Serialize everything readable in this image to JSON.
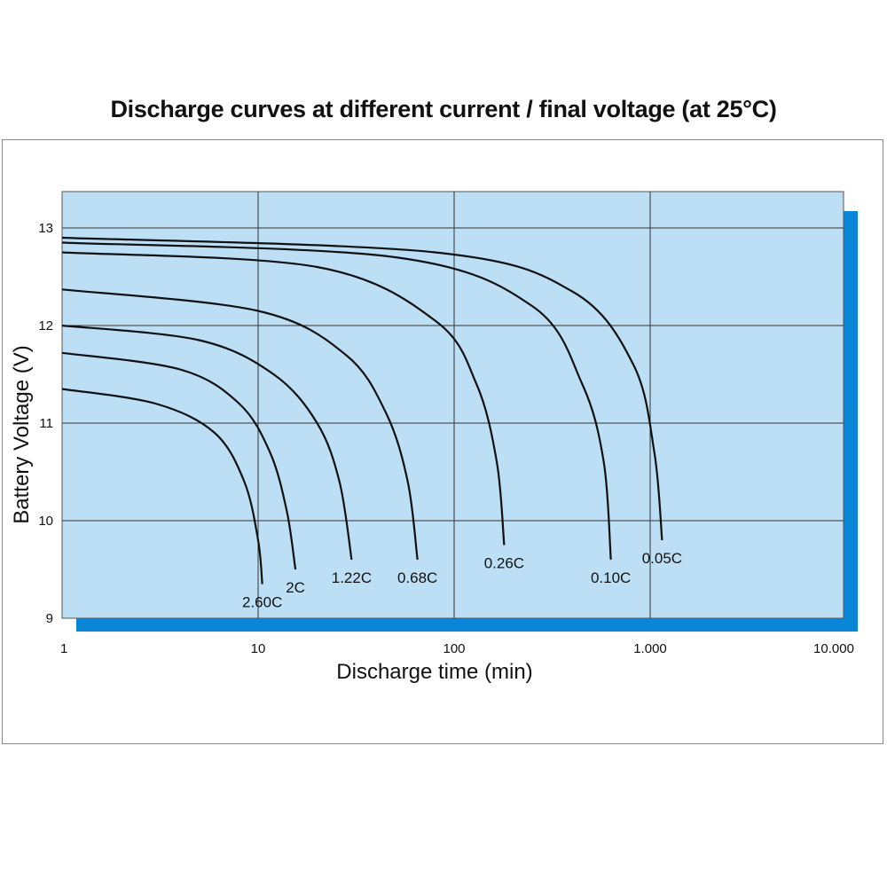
{
  "chart_data": {
    "type": "line",
    "title": "Discharge curves at different current / final voltage (at 25°C)",
    "xlabel": "Discharge time (min)",
    "ylabel": "Battery Voltage (V)",
    "x_scale": "log",
    "xlim": [
      1,
      10000
    ],
    "ylim": [
      9,
      13.2
    ],
    "x_ticks": [
      {
        "value": 1,
        "label": "1"
      },
      {
        "value": 10,
        "label": "10"
      },
      {
        "value": 100,
        "label": "100"
      },
      {
        "value": 1000,
        "label": "1.000"
      },
      {
        "value": 10000,
        "label": "10.000"
      }
    ],
    "y_ticks": [
      {
        "value": 9,
        "label": "9"
      },
      {
        "value": 10,
        "label": "10"
      },
      {
        "value": 11,
        "label": "11"
      },
      {
        "value": 12,
        "label": "12"
      },
      {
        "value": 13,
        "label": "13"
      }
    ],
    "grid": true,
    "colors": {
      "plot_background": "#bddff5",
      "shadow": "#0a86d8",
      "line": "#111111",
      "grid": "#333333"
    },
    "series": [
      {
        "name": "2.60C",
        "points": [
          [
            1,
            11.35
          ],
          [
            3,
            11.2
          ],
          [
            6,
            10.9
          ],
          [
            8.5,
            10.4
          ],
          [
            10,
            9.8
          ],
          [
            10.5,
            9.35
          ]
        ]
      },
      {
        "name": "2C",
        "points": [
          [
            1,
            11.72
          ],
          [
            4,
            11.55
          ],
          [
            8,
            11.2
          ],
          [
            11.5,
            10.7
          ],
          [
            14,
            10.1
          ],
          [
            15.5,
            9.5
          ]
        ]
      },
      {
        "name": "1.22C",
        "points": [
          [
            1,
            12.0
          ],
          [
            5,
            11.85
          ],
          [
            12,
            11.5
          ],
          [
            20,
            11.0
          ],
          [
            26,
            10.4
          ],
          [
            30,
            9.6
          ]
        ]
      },
      {
        "name": "0.68C",
        "points": [
          [
            1,
            12.37
          ],
          [
            10,
            12.15
          ],
          [
            28,
            11.7
          ],
          [
            45,
            11.1
          ],
          [
            58,
            10.4
          ],
          [
            65,
            9.6
          ]
        ]
      },
      {
        "name": "0.26C",
        "points": [
          [
            1,
            12.75
          ],
          [
            20,
            12.6
          ],
          [
            80,
            12.05
          ],
          [
            130,
            11.4
          ],
          [
            165,
            10.6
          ],
          [
            180,
            9.75
          ]
        ]
      },
      {
        "name": "0.10C",
        "points": [
          [
            1,
            12.85
          ],
          [
            50,
            12.7
          ],
          [
            250,
            12.2
          ],
          [
            450,
            11.4
          ],
          [
            580,
            10.6
          ],
          [
            630,
            9.6
          ]
        ]
      },
      {
        "name": "0.05C",
        "points": [
          [
            1,
            12.9
          ],
          [
            80,
            12.75
          ],
          [
            400,
            12.35
          ],
          [
            820,
            11.6
          ],
          [
            1050,
            10.7
          ],
          [
            1150,
            9.8
          ]
        ]
      }
    ]
  }
}
